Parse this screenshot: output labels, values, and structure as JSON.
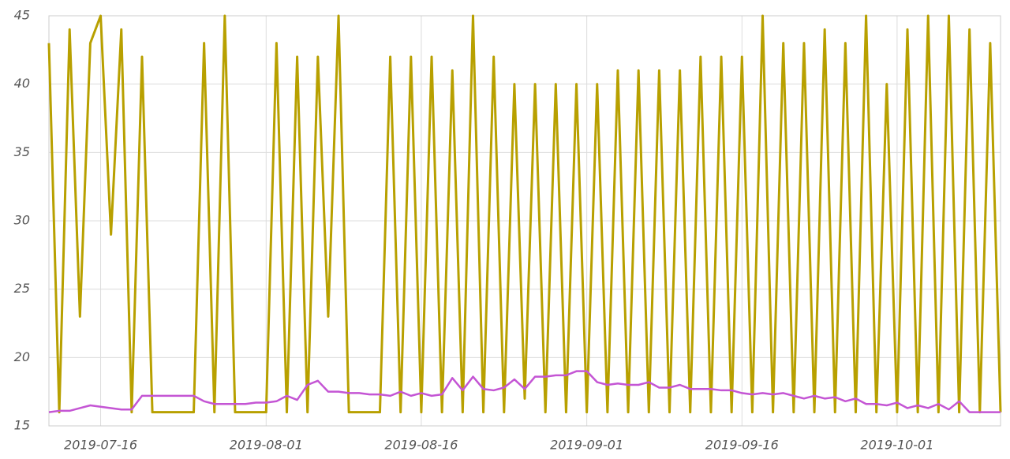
{
  "chart_data": {
    "type": "line",
    "x": [
      "2019-07-11",
      "2019-07-12",
      "2019-07-13",
      "2019-07-14",
      "2019-07-15",
      "2019-07-16",
      "2019-07-17",
      "2019-07-18",
      "2019-07-19",
      "2019-07-20",
      "2019-07-21",
      "2019-07-22",
      "2019-07-23",
      "2019-07-24",
      "2019-07-25",
      "2019-07-26",
      "2019-07-27",
      "2019-07-28",
      "2019-07-29",
      "2019-07-30",
      "2019-07-31",
      "2019-08-01",
      "2019-08-02",
      "2019-08-03",
      "2019-08-04",
      "2019-08-05",
      "2019-08-06",
      "2019-08-07",
      "2019-08-08",
      "2019-08-09",
      "2019-08-10",
      "2019-08-11",
      "2019-08-12",
      "2019-08-13",
      "2019-08-14",
      "2019-08-15",
      "2019-08-16",
      "2019-08-17",
      "2019-08-18",
      "2019-08-19",
      "2019-08-20",
      "2019-08-21",
      "2019-08-22",
      "2019-08-23",
      "2019-08-24",
      "2019-08-25",
      "2019-08-26",
      "2019-08-27",
      "2019-08-28",
      "2019-08-29",
      "2019-08-30",
      "2019-08-31",
      "2019-09-01",
      "2019-09-02",
      "2019-09-03",
      "2019-09-04",
      "2019-09-05",
      "2019-09-06",
      "2019-09-07",
      "2019-09-08",
      "2019-09-09",
      "2019-09-10",
      "2019-09-11",
      "2019-09-12",
      "2019-09-13",
      "2019-09-14",
      "2019-09-15",
      "2019-09-16",
      "2019-09-17",
      "2019-09-18",
      "2019-09-19",
      "2019-09-20",
      "2019-09-21",
      "2019-09-22",
      "2019-09-23",
      "2019-09-24",
      "2019-09-25",
      "2019-09-26",
      "2019-09-27",
      "2019-09-28",
      "2019-09-29",
      "2019-09-30",
      "2019-10-01",
      "2019-10-02",
      "2019-10-03",
      "2019-10-04",
      "2019-10-05",
      "2019-10-06",
      "2019-10-07",
      "2019-10-08",
      "2019-10-09",
      "2019-10-10",
      "2019-10-11"
    ],
    "series": [
      {
        "color": "#b8a000",
        "values": [
          43,
          16,
          44,
          23,
          43,
          45,
          29,
          44,
          16,
          42,
          16,
          16,
          16,
          16,
          16,
          43,
          16,
          45,
          16,
          16,
          16,
          16,
          43,
          16,
          42,
          16,
          42,
          23,
          45,
          16,
          16,
          16,
          16,
          42,
          16,
          42,
          16,
          42,
          16,
          41,
          16,
          45,
          16,
          42,
          16,
          40,
          17,
          40,
          16,
          40,
          16,
          40,
          16,
          40,
          16,
          41,
          16,
          41,
          16,
          41,
          16,
          41,
          16,
          42,
          16,
          42,
          16,
          42,
          16,
          45,
          16,
          43,
          16,
          43,
          16,
          44,
          16,
          43,
          16,
          45,
          16,
          40,
          16,
          44,
          16,
          45,
          16,
          45,
          16,
          44,
          16,
          43,
          16
        ]
      },
      {
        "color": "#c455d4",
        "values": [
          16.0,
          16.1,
          16.1,
          16.3,
          16.5,
          16.4,
          16.3,
          16.2,
          16.2,
          17.2,
          17.2,
          17.2,
          17.2,
          17.2,
          17.2,
          16.8,
          16.6,
          16.6,
          16.6,
          16.6,
          16.7,
          16.7,
          16.8,
          17.2,
          16.9,
          18.0,
          18.3,
          17.5,
          17.5,
          17.4,
          17.4,
          17.3,
          17.3,
          17.2,
          17.5,
          17.2,
          17.4,
          17.2,
          17.3,
          18.5,
          17.6,
          18.6,
          17.7,
          17.6,
          17.8,
          18.4,
          17.7,
          18.6,
          18.6,
          18.7,
          18.7,
          19.0,
          19.0,
          18.2,
          18.0,
          18.1,
          18.0,
          18.0,
          18.2,
          17.8,
          17.8,
          18.0,
          17.7,
          17.7,
          17.7,
          17.6,
          17.6,
          17.4,
          17.3,
          17.4,
          17.3,
          17.4,
          17.2,
          17.0,
          17.2,
          17.0,
          17.1,
          16.8,
          17.0,
          16.6,
          16.6,
          16.5,
          16.7,
          16.3,
          16.5,
          16.3,
          16.6,
          16.2,
          16.8,
          16.0,
          16.0,
          16.0,
          16.0
        ]
      }
    ],
    "xlim": [
      "2019-07-11",
      "2019-10-11"
    ],
    "xticks": [
      "2019-07-16",
      "2019-08-01",
      "2019-08-16",
      "2019-09-01",
      "2019-09-16",
      "2019-10-01"
    ],
    "ylim": [
      15,
      45
    ],
    "yticks": [
      15,
      20,
      25,
      30,
      35,
      40,
      45
    ],
    "grid": true
  }
}
